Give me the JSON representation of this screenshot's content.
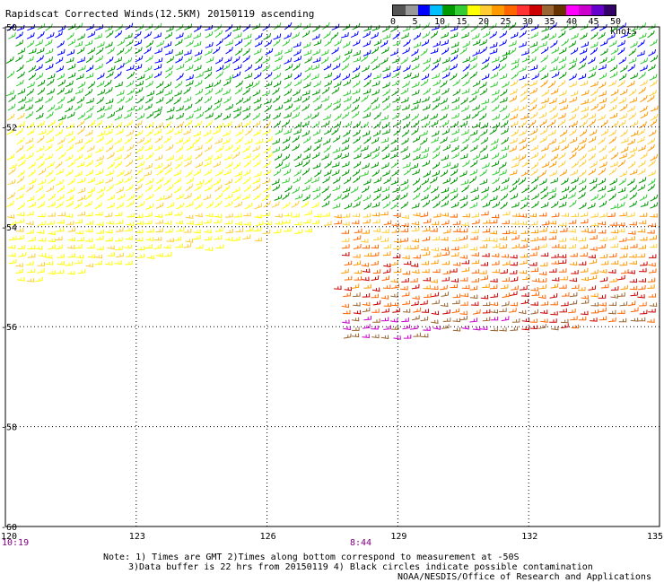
{
  "title": "Rapidscat Corrected Winds(12.5KM) 20150119 ascending",
  "legend": {
    "colors": [
      "#555555",
      "#999999",
      "#0000ff",
      "#00bfff",
      "#009900",
      "#33cc33",
      "#ffff00",
      "#ffcc33",
      "#ff9900",
      "#ff6600",
      "#ff3333",
      "#cc0000",
      "#996633",
      "#663300",
      "#ff00ff",
      "#cc00cc",
      "#6600cc",
      "#330066"
    ],
    "labels": [
      "0",
      "5",
      "10",
      "15",
      "20",
      "25",
      "30",
      "35",
      "40",
      "45",
      "50 knots"
    ],
    "icon": "wind-barb-icon"
  },
  "map": {
    "lat_labels": [
      "-50",
      "-52",
      "-54",
      "-56",
      "-58",
      "-60"
    ],
    "lon_labels": [
      "120",
      "123",
      "126",
      "129",
      "132",
      "135"
    ]
  },
  "times": {
    "left": "10:19",
    "middle": "8:44",
    "left_color": "#800080",
    "middle_color": "#800080"
  },
  "notes": {
    "line1": "Note: 1) Times are GMT 2)Times along bottom correspond to measurement at -50S",
    "line2": "3)Data buffer is 22 hrs from 20150119 4) Black circles indicate possible contamination",
    "credit": "NOAA/NESDIS/Office of Research and Applications"
  }
}
